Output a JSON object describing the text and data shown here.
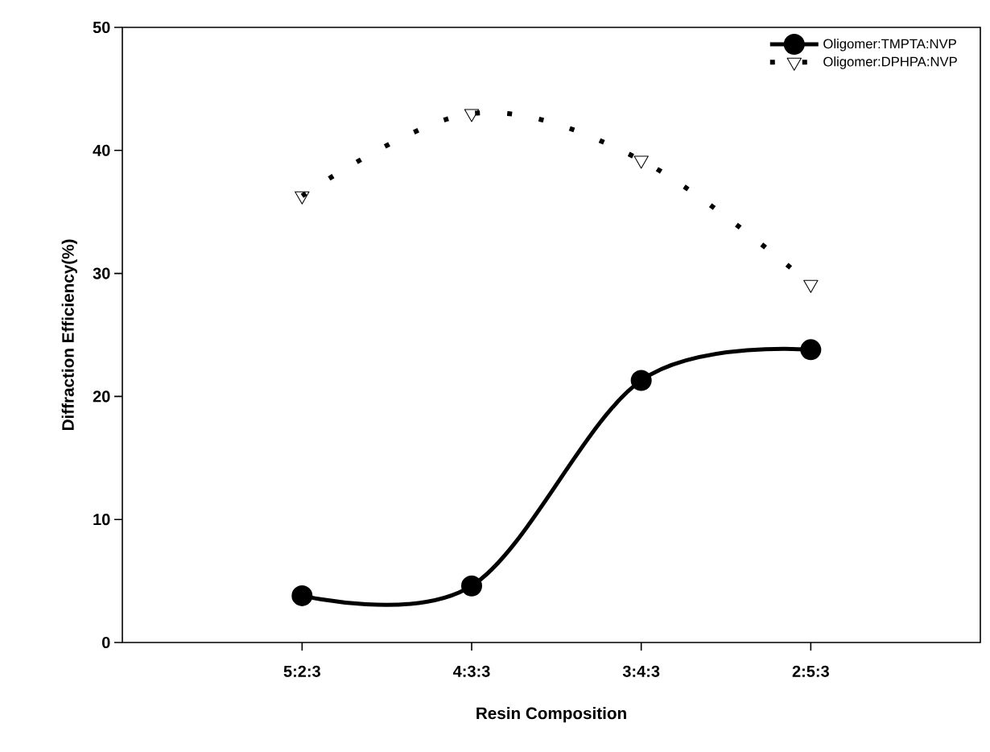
{
  "chart_data": {
    "type": "line",
    "xlabel": "Resin Composition",
    "ylabel": "Diffraction Efficiency(%)",
    "categories": [
      "5:2:3",
      "4:3:3",
      "3:4:3",
      "2:5:3"
    ],
    "series": [
      {
        "name": "Oligomer:TMPTA:NVP",
        "color": "#000000",
        "values": [
          3.8,
          4.6,
          21.3,
          23.8
        ],
        "marker": "circle",
        "line_style": "solid"
      },
      {
        "name": "Oligomer:DPHPA:NVP",
        "color": "#000000",
        "values": [
          36.3,
          43.0,
          39.2,
          29.1
        ],
        "marker": "triangle",
        "line_style": "dotted"
      }
    ],
    "ylim": [
      0,
      50
    ],
    "yticks": [
      0,
      10,
      20,
      30,
      40,
      50
    ],
    "legend": "top right",
    "grid": false
  }
}
